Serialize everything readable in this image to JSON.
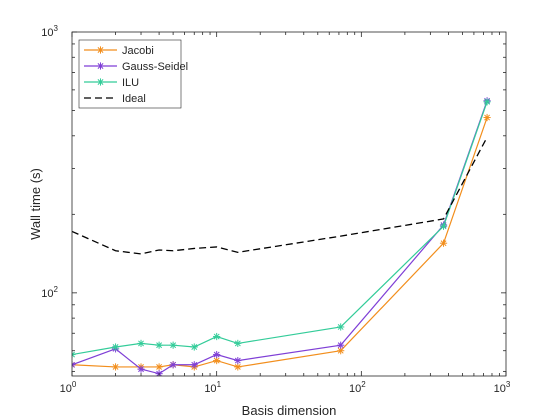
{
  "chart_data": {
    "type": "line",
    "title": "",
    "xlabel": "Basis dimension",
    "ylabel": "Wall time (s)",
    "xscale": "log",
    "yscale": "log",
    "xlim": [
      1,
      1000
    ],
    "ylim": [
      48,
      1000
    ],
    "x_ticks": [
      {
        "base": "10",
        "exp": "0",
        "value": 1
      },
      {
        "base": "10",
        "exp": "1",
        "value": 10
      },
      {
        "base": "10",
        "exp": "2",
        "value": 100
      },
      {
        "base": "10",
        "exp": "3",
        "value": 1000
      }
    ],
    "y_ticks": [
      {
        "base": "10",
        "exp": "2",
        "value": 100
      },
      {
        "base": "10",
        "exp": "3",
        "value": 1000
      }
    ],
    "grid": false,
    "legend_position": "top-left",
    "series": [
      {
        "name": "Jacobi",
        "color": "#f28e1c",
        "marker": "asterisk",
        "line_style": "solid",
        "x": [
          1,
          2,
          3,
          4,
          5,
          7,
          10,
          14,
          72,
          370,
          740
        ],
        "y": [
          53,
          52,
          52,
          52,
          53,
          52,
          55,
          52,
          60,
          155,
          470
        ]
      },
      {
        "name": "Gauss-Seidel",
        "color": "#7f3fd6",
        "marker": "asterisk",
        "line_style": "solid",
        "x": [
          1,
          2,
          3,
          4,
          5,
          7,
          10,
          14,
          72,
          370,
          740
        ],
        "y": [
          53,
          61,
          51,
          49,
          53,
          53,
          58,
          55,
          63,
          182,
          545
        ]
      },
      {
        "name": "ILU",
        "color": "#33cc99",
        "marker": "asterisk",
        "line_style": "solid",
        "x": [
          1,
          2,
          3,
          4,
          5,
          7,
          10,
          14,
          72,
          370,
          740
        ],
        "y": [
          58,
          62,
          64,
          63,
          63,
          62,
          68,
          64,
          74,
          180,
          540
        ]
      },
      {
        "name": "Ideal",
        "color": "#000000",
        "marker": "none",
        "line_style": "dashed",
        "x": [
          1,
          2,
          3,
          4,
          5,
          7,
          10,
          14,
          72,
          370,
          740
        ],
        "y": [
          172,
          145,
          141,
          146,
          145,
          148,
          150,
          143,
          165,
          192,
          395
        ]
      }
    ]
  }
}
